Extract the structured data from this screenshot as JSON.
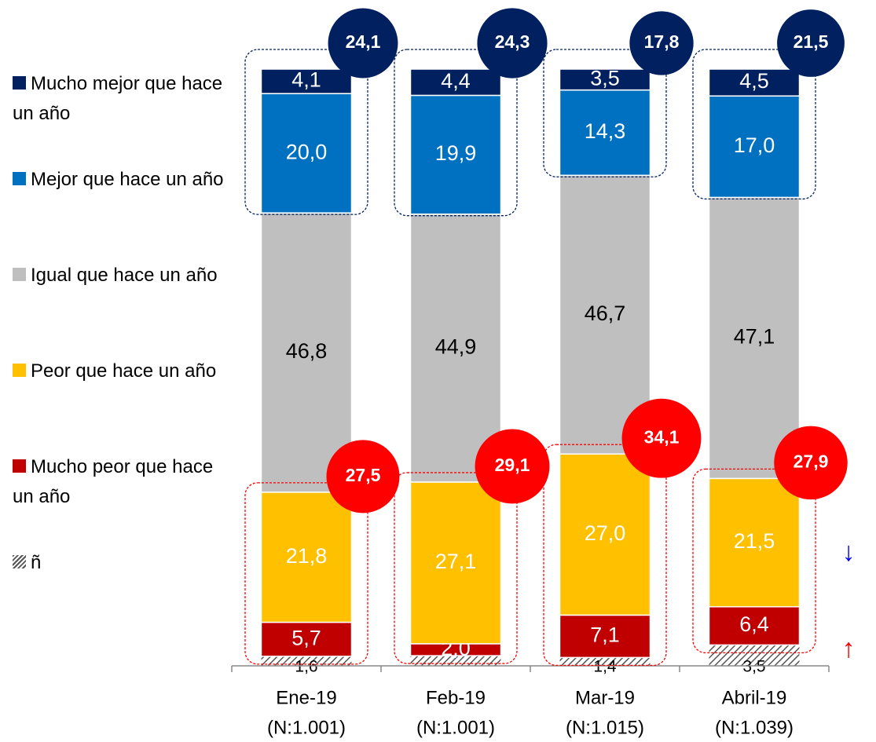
{
  "chart_data": {
    "type": "stacked_bar",
    "categories": [
      "Ene-19",
      "Feb-19",
      "Mar-19",
      "Abril-19"
    ],
    "category_notes": [
      "(N:1.001)",
      "(N:1.001)",
      "(N:1.015)",
      "(N:1.039)"
    ],
    "ylim": [
      0,
      100
    ],
    "series": [
      {
        "name": "ñ",
        "color": "#808080",
        "hatched": true,
        "values": [
          1.6,
          1.7,
          1.4,
          3.5
        ],
        "value_labels": [
          "1,6",
          null,
          "1,4",
          "3,5"
        ]
      },
      {
        "name": "Mucho peor que hace un año",
        "color": "#c00000",
        "values": [
          5.7,
          2.0,
          7.1,
          6.4
        ],
        "value_labels": [
          "5,7",
          "2,0",
          "7,1",
          "6,4"
        ]
      },
      {
        "name": "Peor que hace un año",
        "color": "#ffc000",
        "values": [
          21.8,
          27.1,
          27.0,
          21.5
        ],
        "value_labels": [
          "21,8",
          "27,1",
          "27,0",
          "21,5"
        ]
      },
      {
        "name": "Igual que hace un año",
        "color": "#bfbfbf",
        "values": [
          46.8,
          44.9,
          46.7,
          47.1
        ],
        "value_labels": [
          "46,8",
          "44,9",
          "46,7",
          "47,1"
        ]
      },
      {
        "name": "Mejor que hace un año",
        "color": "#0070c0",
        "values": [
          20.0,
          19.9,
          14.3,
          17.0
        ],
        "value_labels": [
          "20,0",
          "19,9",
          "14,3",
          "17,0"
        ]
      },
      {
        "name": "Mucho mejor que hace un año",
        "color": "#002060",
        "values": [
          4.1,
          4.4,
          3.5,
          4.5
        ],
        "value_labels": [
          "4,1",
          "4,4",
          "3,5",
          "4,5"
        ]
      }
    ],
    "totals": [
      {
        "color": "#002060",
        "values": [
          24.1,
          24.3,
          17.8,
          21.5
        ],
        "value_labels": [
          "24,1",
          "24,3",
          "17,8",
          "21,5"
        ]
      },
      {
        "color": "#ff0000",
        "values": [
          27.5,
          29.1,
          34.1,
          27.9
        ],
        "value_labels": [
          "27,5",
          "29,1",
          "34,1",
          "27,9"
        ]
      }
    ],
    "annotations": [
      {
        "text": "↓",
        "color": "#0000ff"
      },
      {
        "text": "↑",
        "color": "#ff0000"
      }
    ]
  }
}
